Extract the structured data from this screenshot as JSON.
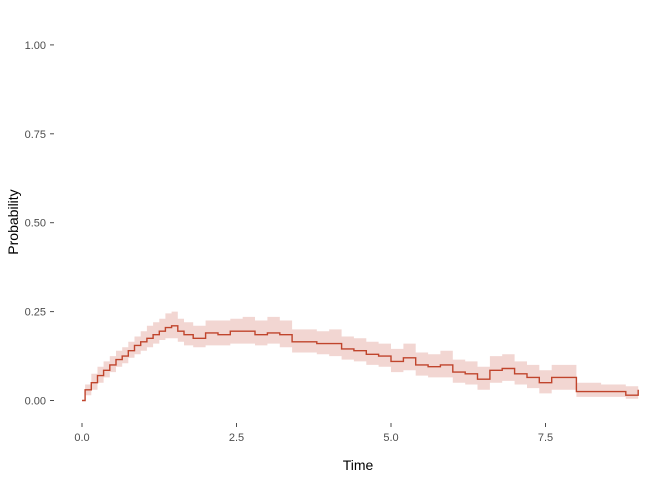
{
  "chart_data": {
    "type": "line",
    "title": "",
    "xlabel": "Time",
    "ylabel": "Probability",
    "xlim": [
      -0.2,
      9.1
    ],
    "ylim": [
      -0.09,
      1.05
    ],
    "grid": false,
    "legend": "none",
    "x_ticks": [
      0.0,
      2.5,
      5.0,
      7.5
    ],
    "x_tick_labels": [
      "0.0",
      "2.5",
      "5.0",
      "7.5"
    ],
    "y_ticks": [
      0.0,
      0.25,
      0.5,
      0.75,
      1.0
    ],
    "y_tick_labels": [
      "0.00",
      "0.25",
      "0.50",
      "0.75",
      "1.00"
    ],
    "colors": {
      "line": "#c0442c",
      "band": "#f2d6d2",
      "tick": "#4d4d4d"
    },
    "series": [
      {
        "x": [
          0.0,
          0.05,
          0.15,
          0.25,
          0.35,
          0.45,
          0.55,
          0.65,
          0.75,
          0.85,
          0.95,
          1.05,
          1.15,
          1.25,
          1.35,
          1.45,
          1.55,
          1.65,
          1.8,
          2.0,
          2.2,
          2.4,
          2.6,
          2.8,
          3.0,
          3.2,
          3.4,
          3.6,
          3.8,
          4.0,
          4.2,
          4.4,
          4.6,
          4.8,
          5.0,
          5.2,
          5.4,
          5.6,
          5.8,
          6.0,
          6.2,
          6.4,
          6.6,
          6.8,
          7.0,
          7.2,
          7.4,
          7.6,
          7.8,
          8.0,
          8.2,
          8.4,
          8.6,
          8.8,
          9.0
        ],
        "y": [
          0.0,
          0.03,
          0.05,
          0.07,
          0.085,
          0.1,
          0.115,
          0.125,
          0.14,
          0.155,
          0.165,
          0.175,
          0.185,
          0.195,
          0.205,
          0.21,
          0.195,
          0.185,
          0.175,
          0.19,
          0.185,
          0.195,
          0.195,
          0.185,
          0.19,
          0.185,
          0.165,
          0.165,
          0.16,
          0.16,
          0.145,
          0.14,
          0.13,
          0.125,
          0.11,
          0.12,
          0.1,
          0.095,
          0.1,
          0.08,
          0.075,
          0.06,
          0.085,
          0.09,
          0.075,
          0.065,
          0.05,
          0.065,
          0.065,
          0.025,
          0.025,
          0.025,
          0.025,
          0.015,
          0.03
        ],
        "lower": [
          0.0,
          0.015,
          0.03,
          0.05,
          0.065,
          0.08,
          0.095,
          0.105,
          0.12,
          0.13,
          0.14,
          0.15,
          0.16,
          0.17,
          0.175,
          0.175,
          0.165,
          0.155,
          0.15,
          0.155,
          0.155,
          0.16,
          0.16,
          0.155,
          0.16,
          0.15,
          0.135,
          0.135,
          0.13,
          0.125,
          0.115,
          0.11,
          0.1,
          0.095,
          0.08,
          0.085,
          0.07,
          0.065,
          0.065,
          0.05,
          0.045,
          0.03,
          0.05,
          0.055,
          0.045,
          0.035,
          0.02,
          0.03,
          0.03,
          0.01,
          0.01,
          0.01,
          0.01,
          0.005,
          0.01
        ],
        "upper": [
          0.0,
          0.045,
          0.075,
          0.095,
          0.11,
          0.125,
          0.14,
          0.15,
          0.165,
          0.18,
          0.195,
          0.21,
          0.22,
          0.23,
          0.245,
          0.25,
          0.23,
          0.22,
          0.21,
          0.225,
          0.225,
          0.23,
          0.235,
          0.225,
          0.235,
          0.225,
          0.2,
          0.2,
          0.195,
          0.2,
          0.18,
          0.175,
          0.165,
          0.16,
          0.145,
          0.16,
          0.135,
          0.13,
          0.14,
          0.115,
          0.11,
          0.095,
          0.125,
          0.13,
          0.11,
          0.1,
          0.085,
          0.1,
          0.1,
          0.05,
          0.05,
          0.045,
          0.045,
          0.04,
          0.05
        ]
      }
    ]
  }
}
